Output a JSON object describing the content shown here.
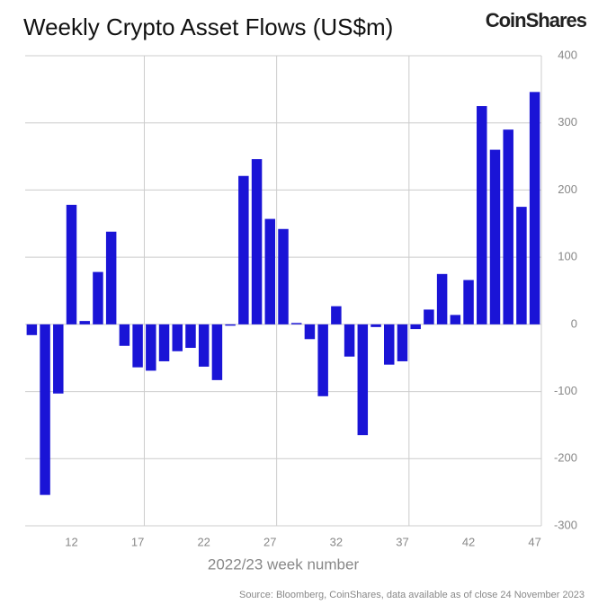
{
  "chart_data": {
    "type": "bar",
    "title": "Weekly Crypto Asset Flows (US$m)",
    "brand": "CoinShares",
    "x_label": "2022/23 week number",
    "source": "Source: Bloomberg, CoinShares, data available as of close 24 November 2023",
    "categories": [
      null,
      null,
      null,
      "12",
      null,
      null,
      null,
      null,
      "17",
      null,
      null,
      null,
      null,
      "22",
      null,
      null,
      null,
      null,
      "27",
      null,
      null,
      null,
      null,
      "32",
      null,
      null,
      null,
      null,
      "37",
      null,
      null,
      null,
      null,
      "42",
      null,
      null,
      null,
      null,
      "47"
    ],
    "values": [
      -16,
      -254,
      -103,
      178,
      5,
      78,
      138,
      -32,
      -64,
      -69,
      -55,
      -40,
      -35,
      -63,
      -83,
      -2,
      221,
      246,
      157,
      142,
      2,
      -22,
      -107,
      27,
      -48,
      -165,
      -4,
      -60,
      -55,
      -7,
      22,
      75,
      14,
      66,
      325,
      260,
      290,
      175,
      346
    ],
    "color": "#1a14d6",
    "ylim": [
      -300,
      400
    ],
    "yticks": [
      400,
      300,
      200,
      100,
      0,
      -100,
      -200,
      -300
    ],
    "grid": true
  }
}
